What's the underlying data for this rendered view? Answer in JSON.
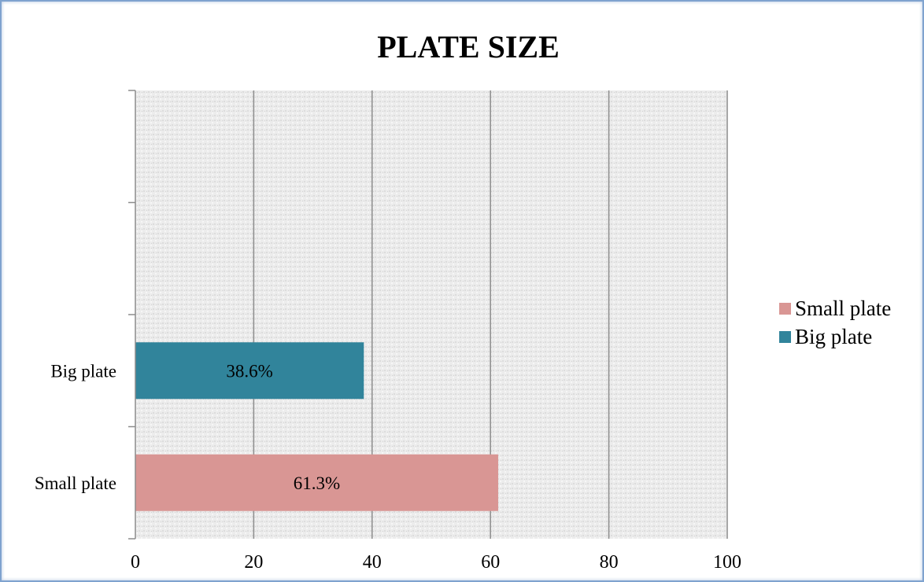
{
  "chart_data": {
    "type": "bar",
    "orientation": "horizontal",
    "title": "PLATE SIZE",
    "categories": [
      "Small plate",
      "Big plate"
    ],
    "values": [
      61.3,
      38.6
    ],
    "data_labels": [
      "61.3%",
      "38.6%"
    ],
    "colors": [
      "#d99694",
      "#31849b"
    ],
    "xlim": [
      0,
      100
    ],
    "x_ticks": [
      "0",
      "20",
      "40",
      "60",
      "80",
      "100"
    ],
    "grid": "vertical",
    "legend": {
      "position": "right",
      "entries": [
        {
          "label": "Small plate",
          "color": "#d99694"
        },
        {
          "label": "Big plate",
          "color": "#31849b"
        }
      ]
    }
  }
}
